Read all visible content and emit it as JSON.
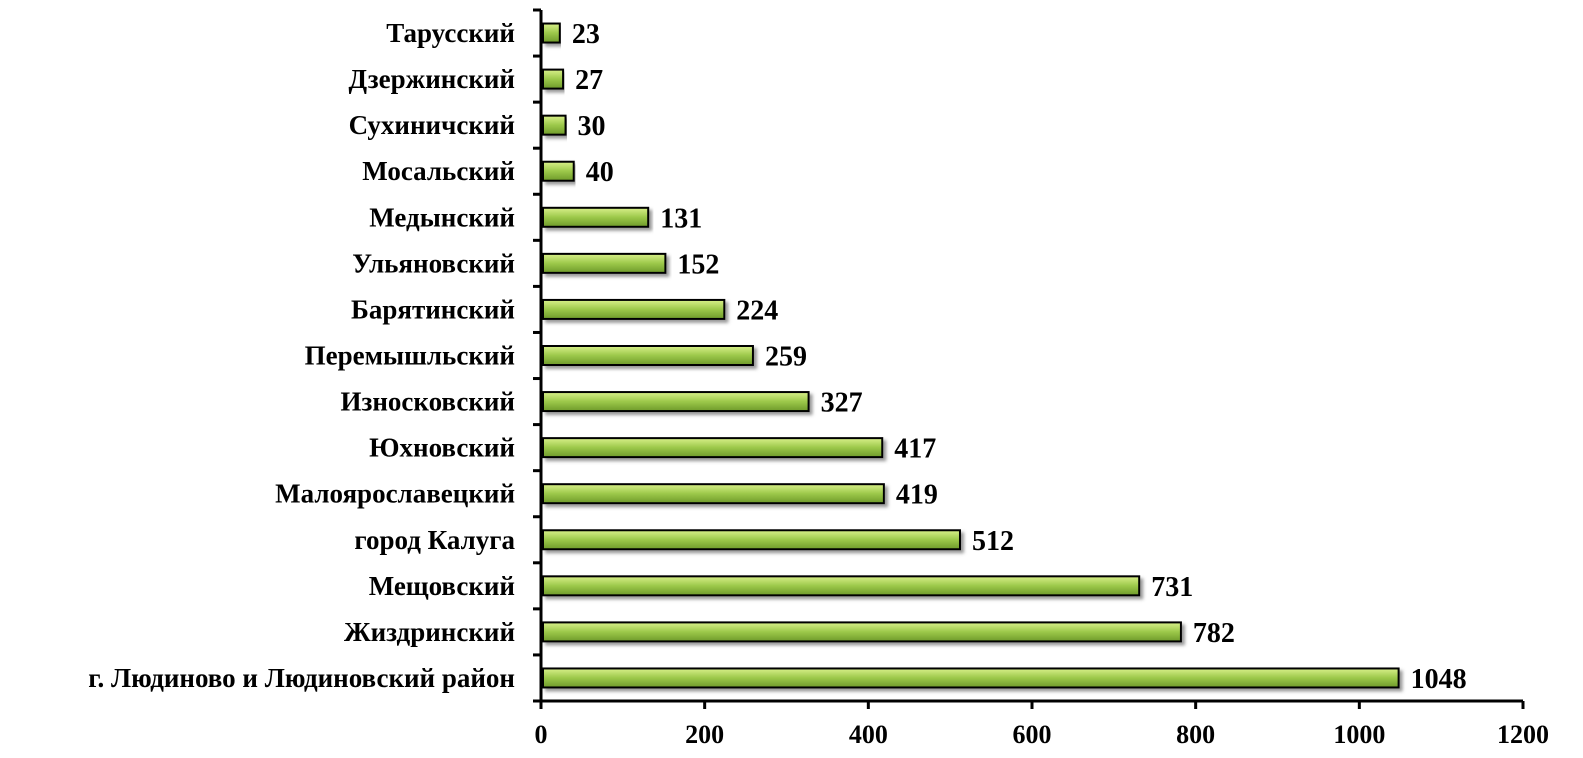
{
  "chart_data": {
    "type": "bar",
    "orientation": "horizontal",
    "title": "",
    "xlabel": "",
    "ylabel": "",
    "categories": [
      "Тарусский",
      "Дзержинский",
      "Сухиничский",
      "Мосальский",
      "Медынский",
      "Ульяновский",
      "Барятинский",
      "Перемышльский",
      "Износковский",
      "Юхновский",
      "Малоярославецкий",
      "город Калуга",
      "Мещовский",
      "Жиздринский",
      "г. Людиново и Людиновский район"
    ],
    "values": [
      23,
      27,
      30,
      40,
      131,
      152,
      224,
      259,
      327,
      417,
      419,
      512,
      731,
      782,
      1048
    ],
    "value_labels": [
      "23",
      "27",
      "30",
      "40",
      "131",
      "152",
      "224",
      "259",
      "327",
      "417",
      "419",
      "512",
      "731",
      "782",
      "1048"
    ],
    "xlim": [
      0,
      1200
    ],
    "ticks": [
      "0",
      "200",
      "400",
      "600",
      "800",
      "1000",
      "1200"
    ],
    "grid": false,
    "legend": "none",
    "colors": {
      "bar_light": "#d9f08a",
      "bar_mid": "#9cc84a",
      "bar_dark": "#6e9a2a",
      "bar_edge": "#000000"
    }
  }
}
